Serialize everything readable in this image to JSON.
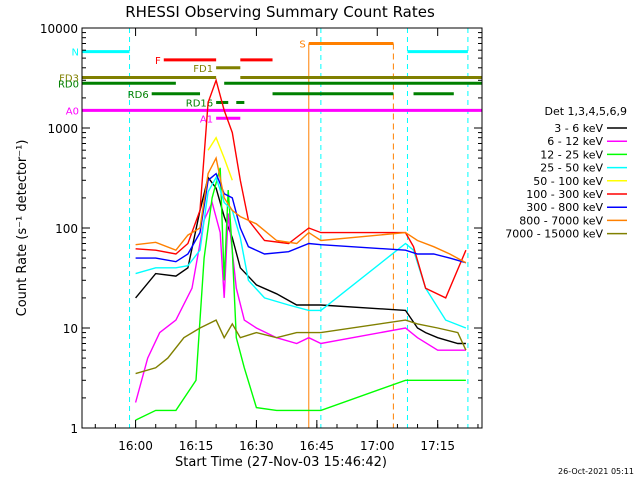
{
  "chart_data": {
    "type": "line",
    "title": "RHESSI Observing Summary Count Rates",
    "xlabel": "Start Time (27-Nov-03 15:46:42)",
    "ylabel": "Count Rate (s⁻¹ detector⁻¹)",
    "x_unit": "hh:mm",
    "x_range": [
      "15:46:42",
      "17:26:00"
    ],
    "ylim": [
      1,
      10000
    ],
    "y_scale": "log",
    "x_ticks": [
      "16:00",
      "16:15",
      "16:30",
      "16:45",
      "17:00",
      "17:15"
    ],
    "y_ticks": [
      "1",
      "10",
      "100",
      "1000",
      "10000"
    ],
    "legend_title": "Det 1,3,4,5,6,9",
    "legend_position": "right",
    "timestamp": "26-Oct-2021 05:11",
    "data_gaps": [
      [
        "15:58:30",
        "16:46:00"
      ],
      [
        "17:07:30",
        "17:22:30"
      ]
    ],
    "series": [
      {
        "name": "3 - 6 keV",
        "color": "#000000",
        "x": [
          "16:00",
          "16:05",
          "16:10",
          "16:13",
          "16:16",
          "16:18",
          "16:20",
          "16:22",
          "16:24",
          "16:26",
          "16:30",
          "16:35",
          "16:40",
          "16:46",
          "17:07",
          "17:10",
          "17:12",
          "17:15",
          "17:20",
          "17:22"
        ],
        "y": [
          20,
          35,
          33,
          40,
          150,
          320,
          250,
          130,
          80,
          40,
          27,
          22,
          17,
          17,
          15,
          10,
          9,
          8,
          7,
          7
        ]
      },
      {
        "name": "6 - 12 keV",
        "color": "#ff00ff",
        "x": [
          "16:00",
          "16:03",
          "16:06",
          "16:10",
          "16:14",
          "16:17",
          "16:19",
          "16:21",
          "16:22",
          "16:23",
          "16:25",
          "16:27",
          "16:30",
          "16:35",
          "16:40",
          "16:43",
          "16:46",
          "17:07",
          "17:10",
          "17:15",
          "17:22"
        ],
        "y": [
          1.8,
          5,
          9,
          12,
          25,
          120,
          180,
          90,
          20,
          140,
          25,
          12,
          10,
          8,
          7,
          8,
          7,
          10,
          8,
          6,
          6
        ]
      },
      {
        "name": "12 - 25 keV",
        "color": "#00ff00",
        "x": [
          "16:00",
          "16:05",
          "16:10",
          "16:15",
          "16:17",
          "16:19",
          "16:21",
          "16:22",
          "16:23",
          "16:24",
          "16:25",
          "16:27",
          "16:30",
          "16:35",
          "16:40",
          "16:46",
          "17:07",
          "17:12",
          "17:17",
          "17:22"
        ],
        "y": [
          1.2,
          1.5,
          1.5,
          3,
          50,
          200,
          400,
          30,
          240,
          60,
          8,
          4,
          1.6,
          1.5,
          1.5,
          1.5,
          3,
          3,
          3,
          3
        ]
      },
      {
        "name": "25 - 50 keV",
        "color": "#00ffff",
        "x": [
          "16:00",
          "16:05",
          "16:10",
          "16:13",
          "16:16",
          "16:18",
          "16:20",
          "16:22",
          "16:24",
          "16:26",
          "16:28",
          "16:32",
          "16:38",
          "16:43",
          "16:46",
          "17:07",
          "17:09",
          "17:12",
          "17:17",
          "17:22"
        ],
        "y": [
          35,
          40,
          40,
          42,
          60,
          230,
          320,
          180,
          150,
          80,
          30,
          20,
          17,
          15,
          15,
          70,
          60,
          25,
          12,
          10
        ]
      },
      {
        "name": "50 - 100 keV",
        "color": "#ffff00",
        "x": [
          "16:18",
          "16:20",
          "16:22",
          "16:24"
        ],
        "y": [
          600,
          800,
          500,
          300
        ]
      },
      {
        "name": "100 - 300 keV",
        "color": "#ff0000",
        "x": [
          "16:00",
          "16:05",
          "16:10",
          "16:13",
          "16:16",
          "16:18",
          "16:20",
          "16:22",
          "16:24",
          "16:26",
          "16:28",
          "16:32",
          "16:38",
          "16:43",
          "16:46",
          "17:07",
          "17:09",
          "17:12",
          "17:17",
          "17:22"
        ],
        "y": [
          62,
          60,
          55,
          70,
          150,
          1800,
          3000,
          1500,
          900,
          300,
          120,
          75,
          70,
          100,
          90,
          90,
          65,
          25,
          20,
          60
        ]
      },
      {
        "name": "300 - 800 keV",
        "color": "#0000ff",
        "x": [
          "16:00",
          "16:05",
          "16:10",
          "16:13",
          "16:16",
          "16:18",
          "16:20",
          "16:22",
          "16:24",
          "16:26",
          "16:28",
          "16:32",
          "16:38",
          "16:43",
          "16:46",
          "17:07",
          "17:10",
          "17:14",
          "17:18",
          "17:22"
        ],
        "y": [
          50,
          50,
          46,
          55,
          90,
          300,
          350,
          220,
          200,
          100,
          65,
          55,
          58,
          70,
          68,
          60,
          55,
          55,
          50,
          45
        ]
      },
      {
        "name": "800 - 7000 keV",
        "color": "#ff8000",
        "x": [
          "16:00",
          "16:05",
          "16:10",
          "16:13",
          "16:16",
          "16:18",
          "16:20",
          "16:22",
          "16:24",
          "16:26",
          "16:30",
          "16:35",
          "16:40",
          "16:43",
          "16:46",
          "17:07",
          "17:10",
          "17:14",
          "17:18",
          "17:22"
        ],
        "y": [
          68,
          72,
          60,
          85,
          100,
          350,
          500,
          200,
          150,
          130,
          110,
          75,
          70,
          90,
          75,
          90,
          75,
          65,
          55,
          45
        ]
      },
      {
        "name": "7000 - 15000 keV",
        "color": "#808000",
        "x": [
          "16:00",
          "16:05",
          "16:08",
          "16:12",
          "16:16",
          "16:20",
          "16:22",
          "16:24",
          "16:26",
          "16:30",
          "16:35",
          "16:40",
          "16:46",
          "17:07",
          "17:10",
          "17:15",
          "17:20",
          "17:22"
        ],
        "y": [
          3.5,
          4,
          5,
          8,
          10,
          12,
          8,
          11,
          8,
          9,
          8,
          9,
          9,
          12,
          11,
          10,
          9,
          6
        ]
      }
    ],
    "flag_segments": [
      {
        "label": "N",
        "color": "#00ffff",
        "y": 5800,
        "segments": [
          [
            "15:46:42",
            "15:58:30"
          ],
          [
            "17:07:30",
            "17:22:30"
          ]
        ]
      },
      {
        "label": "F",
        "color": "#ff0000",
        "y": 4800,
        "segments": [
          [
            "16:07:00",
            "16:20:00"
          ],
          [
            "16:26:00",
            "16:34:00"
          ]
        ]
      },
      {
        "label": "FD1",
        "color": "#808000",
        "y": 4000,
        "segments": [
          [
            "16:20:00",
            "16:26:00"
          ]
        ]
      },
      {
        "label": "FD3",
        "color": "#808000",
        "y": 3200,
        "segments": [
          [
            "15:46:42",
            "16:20:00"
          ],
          [
            "16:26:00",
            "17:26:00"
          ]
        ]
      },
      {
        "label": "RD0",
        "color": "#008000",
        "y": 2800,
        "segments": [
          [
            "15:46:42",
            "16:10:00"
          ],
          [
            "16:22:00",
            "17:26:00"
          ]
        ]
      },
      {
        "label": "RD6",
        "color": "#008000",
        "y": 2200,
        "segments": [
          [
            "16:04:00",
            "16:16:00"
          ],
          [
            "16:34:00",
            "17:04:00"
          ],
          [
            "17:09:00",
            "17:19:00"
          ]
        ]
      },
      {
        "label": "RD16",
        "color": "#008000",
        "y": 1800,
        "segments": [
          [
            "16:20:00",
            "16:23:00"
          ],
          [
            "16:25:00",
            "16:27:00"
          ]
        ]
      },
      {
        "label": "A0",
        "color": "#ff00ff",
        "y": 1500,
        "segments": [
          [
            "15:46:42",
            "17:26:00"
          ]
        ]
      },
      {
        "label": "A1",
        "color": "#ff00ff",
        "y": 1250,
        "segments": [
          [
            "16:20:00",
            "16:26:00"
          ]
        ]
      },
      {
        "label": "S",
        "color": "#ff8000",
        "y": 7000,
        "segments": [
          [
            "16:43:00",
            "17:04:00"
          ]
        ]
      }
    ]
  }
}
